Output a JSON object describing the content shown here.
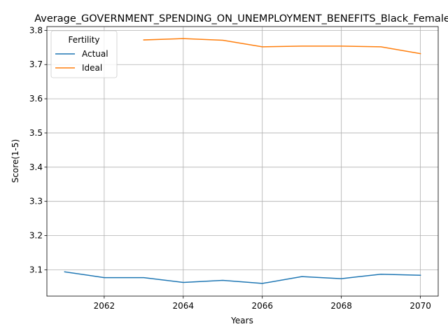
{
  "chart_data": {
    "type": "line",
    "title": "Average_GOVERNMENT_SPENDING_ON_UNEMPLOYMENT_BENEFITS_Black_Female",
    "xlabel": "Years",
    "ylabel": "Score(1-5)",
    "xlim": [
      2060.55,
      2070.45
    ],
    "ylim": [
      3.023,
      3.811
    ],
    "x_ticks": [
      2062,
      2064,
      2066,
      2068,
      2070
    ],
    "y_ticks": [
      3.1,
      3.2,
      3.3,
      3.4,
      3.5,
      3.6,
      3.7,
      3.8
    ],
    "grid": true,
    "legend": {
      "title": "Fertility",
      "placement": "top-left"
    },
    "series": [
      {
        "name": "Actual",
        "color": "#1f77b4",
        "x": [
          2061,
          2062,
          2063,
          2064,
          2065,
          2066,
          2067,
          2068,
          2069,
          2070
        ],
        "values": [
          3.094,
          3.077,
          3.077,
          3.063,
          3.069,
          3.06,
          3.08,
          3.074,
          3.087,
          3.084
        ]
      },
      {
        "name": "Ideal",
        "color": "#ff7f0e",
        "x": [
          2063,
          2064,
          2065,
          2066,
          2067,
          2068,
          2069,
          2070
        ],
        "values": [
          3.772,
          3.776,
          3.771,
          3.752,
          3.754,
          3.754,
          3.752,
          3.732
        ]
      }
    ]
  }
}
